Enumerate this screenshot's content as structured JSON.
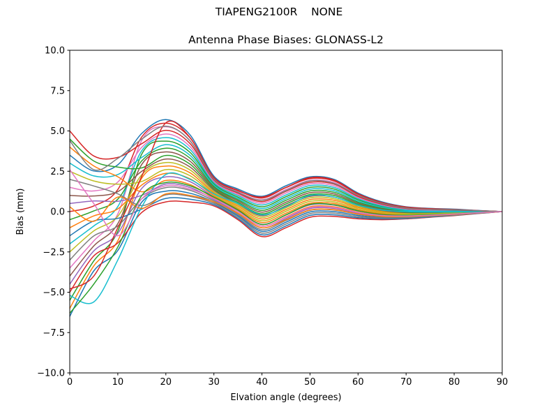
{
  "figure": {
    "suptitle": "TIAPENG2100R    NONE"
  },
  "chart_data": {
    "type": "line",
    "title": "Antenna Phase Biases: GLONASS-L2",
    "xlabel": "Elvation angle (degrees)",
    "ylabel": "Bias (mm)",
    "xlim": [
      0,
      90
    ],
    "ylim": [
      -10,
      10
    ],
    "grid": false,
    "legend": "none",
    "xticks": [
      0,
      10,
      20,
      30,
      40,
      50,
      60,
      70,
      80,
      90
    ],
    "xtick_labels": [
      "0",
      "10",
      "20",
      "30",
      "40",
      "50",
      "60",
      "70",
      "80",
      "90"
    ],
    "yticks": [
      -10,
      -7.5,
      -5,
      -2.5,
      0,
      2.5,
      5,
      7.5,
      10
    ],
    "ytick_labels": [
      "−10.0",
      "−7.5",
      "−5.0",
      "−2.5",
      "0.0",
      "2.5",
      "5.0",
      "7.5",
      "10.0"
    ],
    "x": [
      0,
      5,
      10,
      15,
      20,
      25,
      30,
      35,
      40,
      45,
      50,
      55,
      60,
      65,
      70,
      75,
      80,
      85,
      90
    ],
    "palette": [
      "#1f77b4",
      "#ff7f0e",
      "#2ca02c",
      "#d62728",
      "#9467bd",
      "#8c564b",
      "#e377c2",
      "#7f7f7f",
      "#bcbd22",
      "#17becf"
    ],
    "series": [
      {
        "color": "#1f77b4",
        "values": [
          -6.5,
          -3.68,
          -2.41,
          0.59,
          1.27,
          1.14,
          0.59,
          -0.25,
          -1.22,
          -0.66,
          -0.02,
          0,
          -0.24,
          -0.36,
          -0.35,
          -0.28,
          -0.2,
          -0.09,
          0
        ]
      },
      {
        "color": "#ff7f0e",
        "values": [
          -6,
          -3.37,
          -1.81,
          2.08,
          2.82,
          2.41,
          1.15,
          0.33,
          -0.46,
          0.13,
          0.74,
          0.7,
          0.25,
          -0.02,
          -0.12,
          -0.11,
          -0.08,
          -0.03,
          0
        ]
      },
      {
        "color": "#2ca02c",
        "values": [
          -5.5,
          -3.06,
          -1.22,
          3.57,
          4.37,
          3.68,
          1.72,
          0.9,
          0.3,
          0.92,
          1.5,
          1.4,
          0.73,
          0.31,
          0.1,
          0.06,
          0.05,
          0.02,
          0
        ]
      },
      {
        "color": "#d62728",
        "values": [
          -5,
          -2.75,
          -1.95,
          -0.05,
          0.6,
          0.59,
          0.35,
          -0.5,
          -1.55,
          -1,
          -0.35,
          -0.3,
          -0.45,
          -0.5,
          -0.45,
          -0.35,
          -0.25,
          -0.12,
          0
        ]
      },
      {
        "color": "#9467bd",
        "values": [
          -4.5,
          -2.44,
          -1.35,
          1.44,
          2.15,
          1.86,
          0.91,
          0.08,
          -0.79,
          -0.21,
          0.41,
          0.4,
          0.04,
          -0.17,
          -0.22,
          -0.18,
          -0.13,
          -0.06,
          0
        ]
      },
      {
        "color": "#8c564b",
        "values": [
          -4,
          -2.13,
          -0.75,
          2.93,
          3.7,
          3.13,
          1.48,
          0.66,
          -0.03,
          0.58,
          1.17,
          1.1,
          0.52,
          0.17,
          0.01,
          -0.01,
          -0.01,
          0,
          0
        ]
      },
      {
        "color": "#e377c2",
        "values": [
          -3.5,
          -1.82,
          -0.15,
          4.42,
          5.26,
          4.41,
          2.04,
          1.23,
          0.73,
          1.37,
          1.93,
          1.8,
          1.01,
          0.5,
          0.23,
          0.15,
          0.12,
          0.06,
          0
        ]
      },
      {
        "color": "#7f7f7f",
        "values": [
          -3,
          -1.51,
          -0.89,
          0.8,
          1.49,
          1.32,
          0.67,
          -0.17,
          -1.12,
          -0.55,
          0.08,
          0.1,
          -0.17,
          -0.31,
          -0.32,
          -0.25,
          -0.18,
          -0.09,
          0
        ]
      },
      {
        "color": "#bcbd22",
        "values": [
          -2.5,
          -1.2,
          -0.29,
          2.29,
          3.04,
          2.59,
          1.23,
          0.41,
          -0.35,
          0.24,
          0.85,
          0.8,
          0.31,
          0.03,
          -0.09,
          -0.09,
          -0.06,
          -0.02,
          0
        ]
      },
      {
        "color": "#17becf",
        "values": [
          -2,
          -0.89,
          0.31,
          3.78,
          4.59,
          3.86,
          1.8,
          0.99,
          0.41,
          1.03,
          1.61,
          1.5,
          0.8,
          0.36,
          0.14,
          0.08,
          0.06,
          0.03,
          0
        ]
      },
      {
        "color": "#1f77b4",
        "values": [
          -1.5,
          -0.58,
          -0.42,
          0.16,
          0.82,
          0.77,
          0.43,
          -0.42,
          -1.44,
          -0.89,
          -0.24,
          -0.2,
          -0.38,
          -0.45,
          -0.42,
          -0.33,
          -0.23,
          -0.11,
          0
        ]
      },
      {
        "color": "#ff7f0e",
        "values": [
          -1,
          -0.27,
          0.17,
          1.65,
          2.37,
          2.04,
          0.99,
          0.16,
          -0.68,
          -0.1,
          0.52,
          0.5,
          0.11,
          -0.12,
          -0.19,
          -0.16,
          -0.11,
          -0.05,
          0
        ]
      },
      {
        "color": "#2ca02c",
        "values": [
          -0.5,
          0.04,
          0.77,
          3.15,
          3.93,
          3.32,
          1.56,
          0.74,
          0.08,
          0.7,
          1.28,
          1.2,
          0.59,
          0.22,
          0.04,
          0.01,
          0.01,
          0.01,
          0
        ]
      },
      {
        "color": "#d62728",
        "values": [
          0,
          0.35,
          1.37,
          4.63,
          5.48,
          4.59,
          2.12,
          1.32,
          0.84,
          1.49,
          2.04,
          1.9,
          1.08,
          0.55,
          0.27,
          0.18,
          0.13,
          0.06,
          0
        ]
      },
      {
        "color": "#9467bd",
        "values": [
          0.5,
          0.66,
          0.64,
          1.01,
          1.71,
          1.5,
          0.75,
          -0.09,
          -1.01,
          -0.43,
          0.19,
          0.2,
          -0.1,
          -0.26,
          -0.29,
          -0.23,
          -0.16,
          -0.08,
          0
        ]
      },
      {
        "color": "#8c564b",
        "values": [
          1,
          0.97,
          1.24,
          2.5,
          3.26,
          2.77,
          1.32,
          0.49,
          -0.25,
          0.36,
          0.95,
          0.9,
          0.38,
          0.07,
          -0.06,
          -0.06,
          -0.04,
          -0.02,
          0
        ]
      },
      {
        "color": "#e377c2",
        "values": [
          1.5,
          1.28,
          1.83,
          3.99,
          4.81,
          4.04,
          1.88,
          1.07,
          0.52,
          1.15,
          1.72,
          1.6,
          0.87,
          0.41,
          0.17,
          0.1,
          0.08,
          0.04,
          0
        ]
      },
      {
        "color": "#7f7f7f",
        "values": [
          2,
          1.59,
          1.1,
          0.37,
          1.04,
          0.95,
          0.51,
          -0.33,
          -1.33,
          -0.77,
          -0.13,
          -0.1,
          -0.31,
          -0.4,
          -0.38,
          -0.3,
          -0.22,
          -0.1,
          0
        ]
      },
      {
        "color": "#bcbd22",
        "values": [
          2.5,
          1.9,
          1.7,
          1.87,
          2.6,
          2.23,
          1.07,
          0.24,
          -0.57,
          0.02,
          0.63,
          0.6,
          0.18,
          -0.07,
          -0.16,
          -0.13,
          -0.09,
          -0.04,
          0
        ]
      },
      {
        "color": "#17becf",
        "values": [
          3,
          2.21,
          2.3,
          3.36,
          4.15,
          3.5,
          1.64,
          0.82,
          0.19,
          0.81,
          1.39,
          1.3,
          0.66,
          0.27,
          0.07,
          0.03,
          0.03,
          0.02,
          0
        ]
      },
      {
        "color": "#1f77b4",
        "values": [
          3.5,
          2.52,
          2.9,
          4.85,
          5.7,
          4.77,
          2.2,
          1.4,
          0.95,
          1.6,
          2.15,
          2,
          1.15,
          0.6,
          0.3,
          0.2,
          0.15,
          0.07,
          0
        ]
      },
      {
        "color": "#ff7f0e",
        "values": [
          4,
          2.83,
          2.16,
          1.23,
          1.93,
          1.68,
          0.83,
          0,
          -0.9,
          -0.32,
          0.3,
          0.3,
          -0.03,
          -0.22,
          -0.25,
          -0.21,
          -0.15,
          -0.07,
          0
        ]
      },
      {
        "color": "#2ca02c",
        "values": [
          4.5,
          3.14,
          2.76,
          2.71,
          3.48,
          2.95,
          1.4,
          0.57,
          -0.14,
          0.47,
          1.06,
          1,
          0.45,
          0.12,
          -0.03,
          -0.04,
          -0.02,
          -0.01,
          0
        ]
      },
      {
        "color": "#d62728",
        "values": [
          5,
          3.45,
          3.36,
          4.21,
          5.04,
          4.23,
          1.96,
          1.15,
          0.62,
          1.26,
          1.82,
          1.7,
          0.94,
          0.46,
          0.2,
          0.13,
          0.1,
          0.05,
          0
        ]
      },
      {
        "color": "#17becf",
        "values": [
          -5.2,
          -5.6,
          -3,
          0.3,
          2.3,
          2,
          1.1,
          0.5,
          -0.2,
          0.3,
          1,
          0.9,
          0.4,
          0.1,
          0,
          -0.02,
          -0.02,
          -0.01,
          0
        ]
      },
      {
        "color": "#d62728",
        "values": [
          -4.8,
          -4,
          -1,
          2.2,
          5.5,
          4.6,
          2.1,
          1.3,
          0.9,
          1.5,
          2.1,
          1.95,
          1.1,
          0.56,
          0.28,
          0.18,
          0.13,
          0.06,
          0
        ]
      },
      {
        "color": "#ff7f0e",
        "values": [
          0.3,
          -0.6,
          0.9,
          0.2,
          1.1,
          1,
          0.6,
          -0.1,
          -1,
          -0.5,
          0.1,
          0.12,
          -0.15,
          -0.3,
          -0.3,
          -0.24,
          -0.17,
          -0.08,
          0
        ]
      },
      {
        "color": "#7f7f7f",
        "values": [
          4.4,
          2.6,
          3.3,
          4.5,
          5.3,
          4.4,
          2,
          1.2,
          0.7,
          1.3,
          1.9,
          1.75,
          1,
          0.5,
          0.22,
          0.14,
          0.11,
          0.05,
          0
        ]
      },
      {
        "color": "#2ca02c",
        "values": [
          -6.3,
          -4.5,
          -2.2,
          1,
          1.8,
          1.6,
          0.9,
          0.1,
          -0.8,
          -0.2,
          0.45,
          0.42,
          0.05,
          -0.18,
          -0.23,
          -0.19,
          -0.14,
          -0.06,
          0
        ]
      },
      {
        "color": "#e377c2",
        "values": [
          2.6,
          0.5,
          -1.5,
          0.8,
          1.6,
          1.4,
          0.8,
          0,
          -0.9,
          -0.35,
          0.25,
          0.25,
          -0.05,
          -0.24,
          -0.27,
          -0.22,
          -0.15,
          -0.07,
          0
        ]
      }
    ]
  }
}
